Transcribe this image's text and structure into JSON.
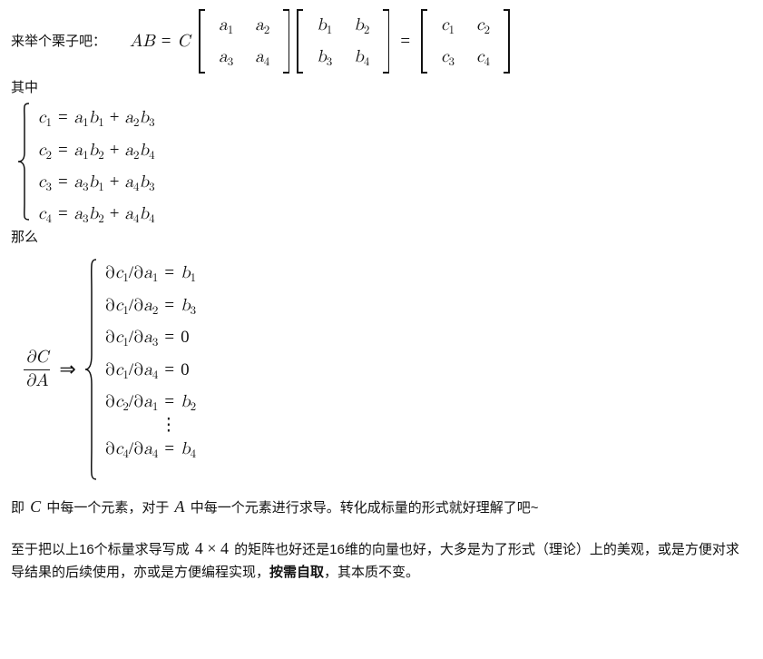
{
  "colors": {
    "text": "#121212",
    "background": "#ffffff"
  },
  "typography": {
    "body_font": "PingFang SC / Microsoft YaHei, sans-serif",
    "math_font": "Cambria Math / STIXGeneral, serif",
    "body_size_pt": 11,
    "math_size_pt": 14,
    "subscript_size_pt": 10
  },
  "intro": {
    "prefix": "来举个栗子吧："
  },
  "eq1": {
    "lhs": "AB = C",
    "A": {
      "rows": [
        [
          "a",
          "1",
          "a",
          "2"
        ],
        [
          "a",
          "3",
          "a",
          "4"
        ]
      ]
    },
    "B": {
      "rows": [
        [
          "b",
          "1",
          "b",
          "2"
        ],
        [
          "b",
          "3",
          "b",
          "4"
        ]
      ]
    },
    "C": {
      "rows": [
        [
          "c",
          "1",
          "c",
          "2"
        ],
        [
          "c",
          "3",
          "c",
          "4"
        ]
      ]
    },
    "eq_sign": "="
  },
  "where_label": "其中",
  "system_c": {
    "rows": [
      {
        "lhs_v": "c",
        "lhs_i": "1",
        "rhs": [
          [
            "a",
            "1",
            "b",
            "1"
          ],
          [
            "a",
            "2",
            "b",
            "3"
          ]
        ]
      },
      {
        "lhs_v": "c",
        "lhs_i": "2",
        "rhs": [
          [
            "a",
            "1",
            "b",
            "2"
          ],
          [
            "a",
            "2",
            "b",
            "4"
          ]
        ]
      },
      {
        "lhs_v": "c",
        "lhs_i": "3",
        "rhs": [
          [
            "a",
            "3",
            "b",
            "1"
          ],
          [
            "a",
            "4",
            "b",
            "3"
          ]
        ]
      },
      {
        "lhs_v": "c",
        "lhs_i": "4",
        "rhs": [
          [
            "a",
            "3",
            "b",
            "2"
          ],
          [
            "a",
            "4",
            "b",
            "4"
          ]
        ]
      }
    ]
  },
  "then_label": "那么",
  "deriv": {
    "frac_num": "∂C",
    "frac_den": "∂A",
    "arrow": "⇒",
    "rows": [
      {
        "text_parts": [
          "∂c",
          "1",
          "/∂a",
          "1",
          " = b",
          "1"
        ]
      },
      {
        "text_parts": [
          "∂c",
          "1",
          "/∂a",
          "2",
          " = b",
          "3"
        ]
      },
      {
        "text_parts": [
          "∂c",
          "1",
          "/∂a",
          "3",
          " = 0"
        ]
      },
      {
        "text_parts": [
          "∂c",
          "1",
          "/∂a",
          "4",
          " = 0"
        ]
      },
      {
        "text_parts": [
          "∂c",
          "2",
          "/∂a",
          "1",
          " = b",
          "2"
        ]
      },
      {
        "vdots": true
      },
      {
        "text_parts": [
          "∂c",
          "4",
          "/∂a",
          "4",
          " = b",
          "4"
        ]
      }
    ]
  },
  "para1": {
    "t1": "即 ",
    "C": "C",
    "t2": " 中每一个元素，对于 ",
    "A": "A",
    "t3": " 中每一个元素进行求导。转化成标量的形式就好理解了吧~"
  },
  "para2": {
    "t1": "至于把以上16个标量求导写成 ",
    "m": "4 × 4",
    "t2": " 的矩阵也好还是16维的向量也好，大多是为了形式（理论）上的美观，或是方便对求导结果的后续使用，亦或是方便编程实现，",
    "bold": "按需自取",
    "t3": "，其本质不变。"
  }
}
